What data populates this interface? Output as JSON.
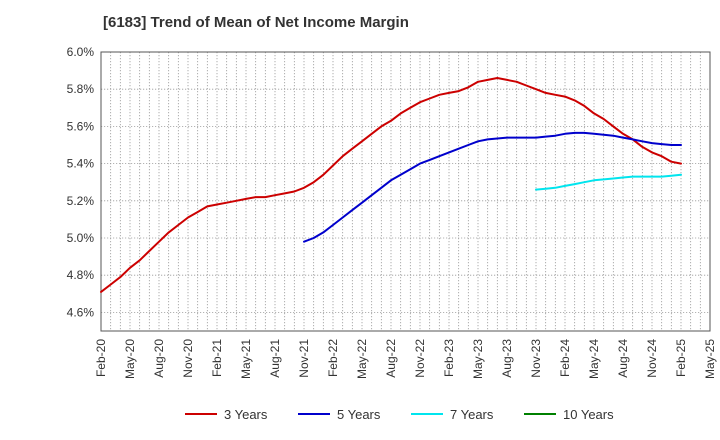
{
  "chart_data": {
    "type": "line",
    "title": "[6183]  Trend of Mean of Net Income Margin",
    "xlabel": "",
    "ylabel": "",
    "x_ticks": [
      "Feb-20",
      "May-20",
      "Aug-20",
      "Nov-20",
      "Feb-21",
      "May-21",
      "Aug-21",
      "Nov-21",
      "Feb-22",
      "May-22",
      "Aug-22",
      "Nov-22",
      "Feb-23",
      "May-23",
      "Aug-23",
      "Nov-23",
      "Feb-24",
      "May-24",
      "Aug-24",
      "Nov-24",
      "Feb-25",
      "May-25"
    ],
    "y_ticks": [
      "4.6%",
      "4.8%",
      "5.0%",
      "5.2%",
      "5.4%",
      "5.6%",
      "5.8%",
      "6.0%"
    ],
    "ylim": [
      4.5,
      6.0
    ],
    "grid": true,
    "legend_position": "bottom",
    "series": [
      {
        "name": "3 Years",
        "color": "#cc0000",
        "points": [
          [
            "Feb-20",
            4.71
          ],
          [
            "Mar-20",
            4.75
          ],
          [
            "Apr-20",
            4.79
          ],
          [
            "May-20",
            4.84
          ],
          [
            "Jun-20",
            4.88
          ],
          [
            "Jul-20",
            4.93
          ],
          [
            "Aug-20",
            4.98
          ],
          [
            "Sep-20",
            5.03
          ],
          [
            "Oct-20",
            5.07
          ],
          [
            "Nov-20",
            5.11
          ],
          [
            "Dec-20",
            5.14
          ],
          [
            "Jan-21",
            5.17
          ],
          [
            "Feb-21",
            5.18
          ],
          [
            "Mar-21",
            5.19
          ],
          [
            "Apr-21",
            5.2
          ],
          [
            "May-21",
            5.21
          ],
          [
            "Jun-21",
            5.22
          ],
          [
            "Jul-21",
            5.22
          ],
          [
            "Aug-21",
            5.23
          ],
          [
            "Sep-21",
            5.24
          ],
          [
            "Oct-21",
            5.25
          ],
          [
            "Nov-21",
            5.27
          ],
          [
            "Dec-21",
            5.3
          ],
          [
            "Jan-22",
            5.34
          ],
          [
            "Feb-22",
            5.39
          ],
          [
            "Mar-22",
            5.44
          ],
          [
            "Apr-22",
            5.48
          ],
          [
            "May-22",
            5.52
          ],
          [
            "Jun-22",
            5.56
          ],
          [
            "Jul-22",
            5.6
          ],
          [
            "Aug-22",
            5.63
          ],
          [
            "Sep-22",
            5.67
          ],
          [
            "Oct-22",
            5.7
          ],
          [
            "Nov-22",
            5.73
          ],
          [
            "Dec-22",
            5.75
          ],
          [
            "Jan-23",
            5.77
          ],
          [
            "Feb-23",
            5.78
          ],
          [
            "Mar-23",
            5.79
          ],
          [
            "Apr-23",
            5.81
          ],
          [
            "May-23",
            5.84
          ],
          [
            "Jun-23",
            5.85
          ],
          [
            "Jul-23",
            5.86
          ],
          [
            "Aug-23",
            5.85
          ],
          [
            "Sep-23",
            5.84
          ],
          [
            "Oct-23",
            5.82
          ],
          [
            "Nov-23",
            5.8
          ],
          [
            "Dec-23",
            5.78
          ],
          [
            "Jan-24",
            5.77
          ],
          [
            "Feb-24",
            5.76
          ],
          [
            "Mar-24",
            5.74
          ],
          [
            "Apr-24",
            5.71
          ],
          [
            "May-24",
            5.67
          ],
          [
            "Jun-24",
            5.64
          ],
          [
            "Jul-24",
            5.6
          ],
          [
            "Aug-24",
            5.56
          ],
          [
            "Sep-24",
            5.53
          ],
          [
            "Oct-24",
            5.49
          ],
          [
            "Nov-24",
            5.46
          ],
          [
            "Dec-24",
            5.44
          ],
          [
            "Jan-25",
            5.41
          ],
          [
            "Feb-25",
            5.4
          ]
        ]
      },
      {
        "name": "5 Years",
        "color": "#0000cc",
        "points": [
          [
            "Nov-21",
            4.98
          ],
          [
            "Dec-21",
            5.0
          ],
          [
            "Jan-22",
            5.03
          ],
          [
            "Feb-22",
            5.07
          ],
          [
            "Mar-22",
            5.11
          ],
          [
            "Apr-22",
            5.15
          ],
          [
            "May-22",
            5.19
          ],
          [
            "Jun-22",
            5.23
          ],
          [
            "Jul-22",
            5.27
          ],
          [
            "Aug-22",
            5.31
          ],
          [
            "Sep-22",
            5.34
          ],
          [
            "Oct-22",
            5.37
          ],
          [
            "Nov-22",
            5.4
          ],
          [
            "Dec-22",
            5.42
          ],
          [
            "Jan-23",
            5.44
          ],
          [
            "Feb-23",
            5.46
          ],
          [
            "Mar-23",
            5.48
          ],
          [
            "Apr-23",
            5.5
          ],
          [
            "May-23",
            5.52
          ],
          [
            "Jun-23",
            5.53
          ],
          [
            "Jul-23",
            5.535
          ],
          [
            "Aug-23",
            5.54
          ],
          [
            "Sep-23",
            5.54
          ],
          [
            "Oct-23",
            5.54
          ],
          [
            "Nov-23",
            5.54
          ],
          [
            "Dec-23",
            5.545
          ],
          [
            "Jan-24",
            5.55
          ],
          [
            "Feb-24",
            5.56
          ],
          [
            "Mar-24",
            5.565
          ],
          [
            "Apr-24",
            5.565
          ],
          [
            "May-24",
            5.56
          ],
          [
            "Jun-24",
            5.555
          ],
          [
            "Jul-24",
            5.55
          ],
          [
            "Aug-24",
            5.54
          ],
          [
            "Sep-24",
            5.53
          ],
          [
            "Oct-24",
            5.52
          ],
          [
            "Nov-24",
            5.51
          ],
          [
            "Dec-24",
            5.505
          ],
          [
            "Jan-25",
            5.5
          ],
          [
            "Feb-25",
            5.5
          ]
        ]
      },
      {
        "name": "7 Years",
        "color": "#00e5ee",
        "points": [
          [
            "Nov-23",
            5.26
          ],
          [
            "Dec-23",
            5.265
          ],
          [
            "Jan-24",
            5.27
          ],
          [
            "Feb-24",
            5.28
          ],
          [
            "Mar-24",
            5.29
          ],
          [
            "Apr-24",
            5.3
          ],
          [
            "May-24",
            5.31
          ],
          [
            "Jun-24",
            5.315
          ],
          [
            "Jul-24",
            5.32
          ],
          [
            "Aug-24",
            5.325
          ],
          [
            "Sep-24",
            5.33
          ],
          [
            "Oct-24",
            5.33
          ],
          [
            "Nov-24",
            5.33
          ],
          [
            "Dec-24",
            5.33
          ],
          [
            "Jan-25",
            5.335
          ],
          [
            "Feb-25",
            5.34
          ]
        ]
      },
      {
        "name": "10 Years",
        "color": "#008000",
        "points": []
      }
    ]
  }
}
